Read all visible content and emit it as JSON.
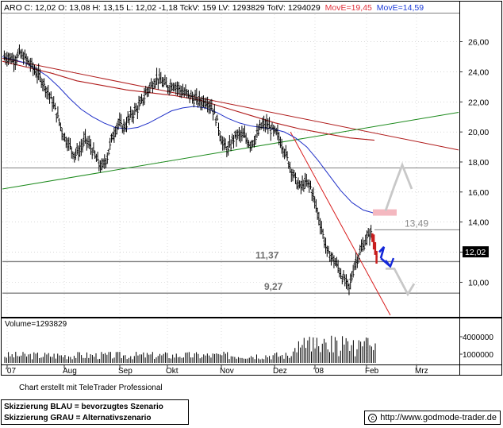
{
  "header": {
    "info_text": "ARO C: 12,02 O: 13,08 H: 13,15 L: 12,02 -1,18 TckV: 159 LV: 1293829 TotV: 1294029",
    "move_a": "MovE=19,45",
    "move_b": "MovE=14,59",
    "move_a_color": "#e0303a",
    "move_b_color": "#1e3cd8"
  },
  "volume_label": "Volume=1293829",
  "credit": "Chart erstellt mit TeleTrader Professional",
  "legend": {
    "line1": "Skizzierung BLAU = bevorzugtes Szenario",
    "line2": "Skizzierung GRAU = Alternativszenario"
  },
  "source": {
    "icon": "copyright-icon",
    "text": "http://www.godmode-trader.de"
  },
  "colors": {
    "price": "#000000",
    "ema_fast": "#2030c8",
    "ema_slow": "#b01c1c",
    "trend_up": "#1c8a1c",
    "trend_down": "#d81c1c",
    "support": "#808080",
    "scenario_blue": "#1428d8",
    "scenario_grey": "#c8c8c8",
    "target_zone": "#f4b8c0",
    "last_bar": "#c81e1e"
  },
  "chart_data": [
    {
      "type": "candlestick",
      "symbol": "ARO",
      "x_labels": [
        "'07",
        "Aug",
        "Sep",
        "Okt",
        "Nov",
        "Dez",
        "'08",
        "Feb",
        "Mrz"
      ],
      "y_ticks": [
        10.0,
        12.0,
        14.0,
        16.0,
        18.0,
        20.0,
        22.0,
        24.0,
        26.0
      ],
      "y_tick_labels": [
        "10,00",
        "12,00",
        "14,00",
        "16,00",
        "18,00",
        "20,00",
        "22,00",
        "24,00",
        "26,00"
      ],
      "ylim": [
        7.8,
        27.3
      ],
      "last_price": 12.02,
      "last_price_label": "12,02",
      "ohlc_last": {
        "open": 13.08,
        "high": 13.15,
        "low": 12.02,
        "close": 12.02
      },
      "closes": [
        25.0,
        24.8,
        25.2,
        24.9,
        24.5,
        24.0,
        23.5,
        22.8,
        22.0,
        21.0,
        19.8,
        19.2,
        18.5,
        18.8,
        19.5,
        19.0,
        18.2,
        17.6,
        18.4,
        19.8,
        20.6,
        20.3,
        20.9,
        21.4,
        21.8,
        22.6,
        23.1,
        23.6,
        23.3,
        23.0,
        23.2,
        22.9,
        22.6,
        22.4,
        22.2,
        22.0,
        22.1,
        21.7,
        20.7,
        19.2,
        18.8,
        19.6,
        19.8,
        19.7,
        19.2,
        19.6,
        20.4,
        20.5,
        20.1,
        19.8,
        19.0,
        18.0,
        17.0,
        16.3,
        16.6,
        16.4,
        15.0,
        13.6,
        12.0,
        11.6,
        11.0,
        10.2,
        9.6,
        11.2,
        12.0,
        12.8,
        13.3,
        12.02
      ],
      "ema_fast_label": "MovE=14,59",
      "ema_fast": [
        25.0,
        24.8,
        24.6,
        24.2,
        23.7,
        23.0,
        22.2,
        21.5,
        21.0,
        20.6,
        20.3,
        20.2,
        20.3,
        20.6,
        21.0,
        21.4,
        21.6,
        21.7,
        21.6,
        21.3,
        20.9,
        20.6,
        20.4,
        20.3,
        20.2,
        20.0,
        19.6,
        19.0,
        18.1,
        17.1,
        16.1,
        15.3,
        14.8,
        14.59
      ],
      "ema_slow_label": "MovE=19,45",
      "ema_slow": [
        24.7,
        24.3,
        23.9,
        23.4,
        23.1,
        22.8,
        22.6,
        22.4,
        22.1,
        21.6,
        21.1,
        20.6,
        20.2,
        19.9,
        19.6,
        19.45
      ],
      "trendlines": [
        {
          "name": "resistance",
          "from": [
            24.9,
            "'07"
          ],
          "to": [
            18.8,
            "Mrz"
          ]
        },
        {
          "name": "support-green",
          "from": [
            16.2,
            "'07"
          ],
          "to": [
            21.3,
            "Mrz"
          ]
        },
        {
          "name": "steep-down",
          "from": [
            20.0,
            "Dez"
          ],
          "to": [
            7.8,
            "Feb"
          ]
        }
      ],
      "levels": [
        {
          "value": 17.6,
          "label": ""
        },
        {
          "value": 13.49,
          "label": "13,49"
        },
        {
          "value": 11.37,
          "label": "11,37"
        },
        {
          "value": 9.27,
          "label": "9,27"
        }
      ],
      "scenarios": {
        "blue": "drop from 12.0 towards 11.2 (preferred)",
        "grey": "either rise to ~18 or fall to ~9.2 (alternative)"
      },
      "grid": true
    },
    {
      "type": "bar",
      "title": "Volume=1293829",
      "y_tick_labels": [
        "4000000",
        "1000000"
      ],
      "grid": true
    }
  ]
}
